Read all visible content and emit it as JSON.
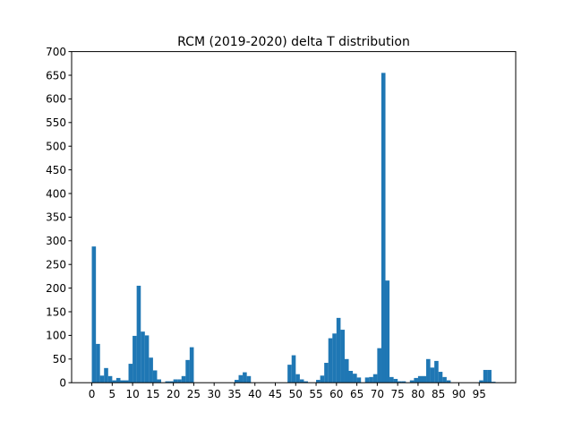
{
  "chart_data": {
    "type": "bar",
    "title": "RCM (2019-2020) delta T distribution",
    "xlabel": "",
    "ylabel": "",
    "bin_width": 1,
    "xlim": [
      -4.95,
      103.95
    ],
    "ylim": [
      0,
      700
    ],
    "xticks": [
      0,
      5,
      10,
      15,
      20,
      25,
      30,
      35,
      40,
      45,
      50,
      55,
      60,
      65,
      70,
      75,
      80,
      85,
      90,
      95
    ],
    "yticks": [
      0,
      50,
      100,
      150,
      200,
      250,
      300,
      350,
      400,
      450,
      500,
      550,
      600,
      650,
      700
    ],
    "bin_starts": [
      0,
      1,
      2,
      3,
      4,
      5,
      6,
      7,
      8,
      9,
      10,
      11,
      12,
      13,
      14,
      15,
      16,
      17,
      18,
      19,
      20,
      21,
      22,
      23,
      24,
      25,
      26,
      27,
      28,
      29,
      30,
      31,
      32,
      33,
      34,
      35,
      36,
      37,
      38,
      39,
      40,
      41,
      42,
      43,
      44,
      45,
      46,
      47,
      48,
      49,
      50,
      51,
      52,
      53,
      54,
      55,
      56,
      57,
      58,
      59,
      60,
      61,
      62,
      63,
      64,
      65,
      66,
      67,
      68,
      69,
      70,
      71,
      72,
      73,
      74,
      75,
      76,
      77,
      78,
      79,
      80,
      81,
      82,
      83,
      84,
      85,
      86,
      87,
      88,
      89,
      90,
      91,
      92,
      93,
      94,
      95,
      96,
      97,
      98
    ],
    "values": [
      288,
      82,
      15,
      31,
      14,
      5,
      10,
      5,
      5,
      40,
      99,
      205,
      108,
      100,
      53,
      26,
      7,
      0,
      3,
      3,
      7,
      7,
      14,
      48,
      75,
      0,
      0,
      0,
      0,
      0,
      0,
      0,
      0,
      0,
      0,
      6,
      16,
      22,
      14,
      0,
      0,
      0,
      0,
      0,
      0,
      0,
      0,
      0,
      38,
      58,
      18,
      7,
      3,
      0,
      0,
      6,
      15,
      42,
      94,
      104,
      137,
      112,
      50,
      25,
      19,
      11,
      0,
      11,
      12,
      18,
      73,
      655,
      216,
      12,
      8,
      3,
      3,
      0,
      5,
      10,
      14,
      14,
      50,
      32,
      46,
      23,
      12,
      5,
      0,
      0,
      0,
      0,
      0,
      0,
      0,
      5,
      27,
      27,
      2
    ]
  }
}
